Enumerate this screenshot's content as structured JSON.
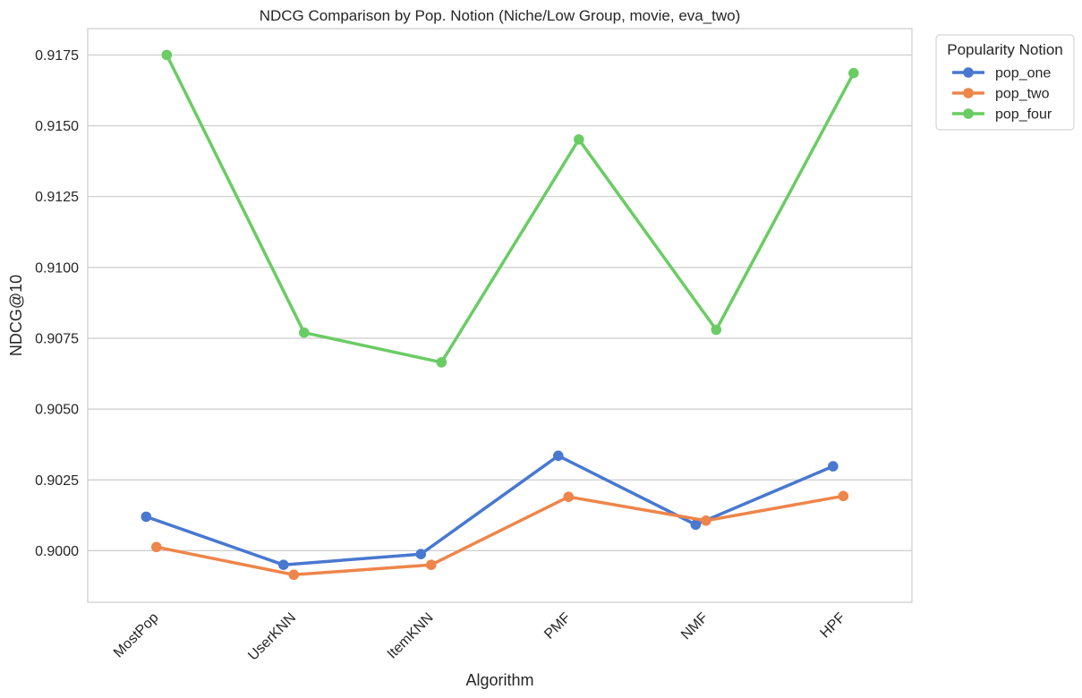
{
  "chart_data": {
    "type": "line",
    "title": "NDCG Comparison by Pop. Notion (Niche/Low Group, movie, eva_two)",
    "xlabel": "Algorithm",
    "ylabel": "NDCG@10",
    "categories": [
      "MostPop",
      "UserKNN",
      "ItemKNN",
      "PMF",
      "NMF",
      "HPF"
    ],
    "ylim": [
      0.89818,
      0.91843
    ],
    "yticks": [
      "0.9000",
      "0.9025",
      "0.9050",
      "0.9075",
      "0.9100",
      "0.9125",
      "0.9150",
      "0.9175"
    ],
    "grid": "horizontal",
    "legend": {
      "title": "Popularity Notion",
      "placement": "outside-top-right"
    },
    "series": [
      {
        "name": "pop_one",
        "color": "#4878d0",
        "values": [
          0.9012,
          0.8995,
          0.89988,
          0.90335,
          0.90092,
          0.90298
        ]
      },
      {
        "name": "pop_two",
        "color": "#ee854a",
        "values": [
          0.90013,
          0.89915,
          0.8995,
          0.9019,
          0.90106,
          0.90193
        ]
      },
      {
        "name": "pop_four",
        "color": "#6acc64",
        "values": [
          0.9175,
          0.9077,
          0.90665,
          0.91452,
          0.9078,
          0.91686
        ]
      }
    ]
  }
}
